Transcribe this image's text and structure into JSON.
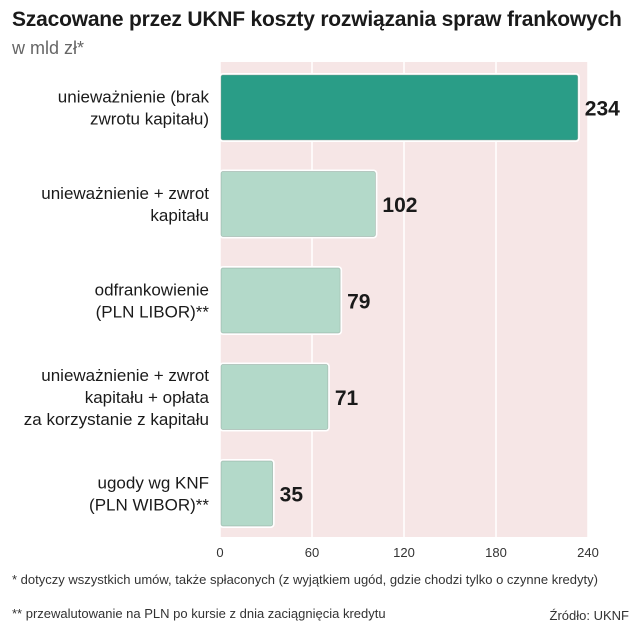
{
  "chart_data": {
    "type": "bar",
    "orientation": "horizontal",
    "title": "Szacowane przez UKNF koszty rozwiązania spraw frankowych",
    "subtitle": "w mld zł*",
    "categories": [
      [
        "unieważnienie (brak",
        "zwrotu kapitału)"
      ],
      [
        "unieważnienie + zwrot",
        "kapitału"
      ],
      [
        "odfrankowienie",
        "(PLN LIBOR)**"
      ],
      [
        "unieważnienie + zwrot",
        "kapitału + opłata",
        "za korzystanie z kapitału"
      ],
      [
        "ugody wg KNF",
        "(PLN WIBOR)**"
      ]
    ],
    "values": [
      234,
      102,
      79,
      71,
      35
    ],
    "value_labels": [
      "234",
      "102",
      "79",
      "71",
      "35"
    ],
    "x_ticks": [
      "0",
      "60",
      "120",
      "180",
      "240"
    ],
    "x_tick_values": [
      0,
      60,
      120,
      180,
      240
    ],
    "xlim": [
      0,
      240
    ],
    "grid": true,
    "colors": {
      "highlight_bar": "#2a9d87",
      "bar": "#b3d9c9",
      "bar_border": "#ffffff",
      "plot_background": "#f6e6e6",
      "grid": "#ffffff"
    }
  },
  "footnotes": {
    "note1": "* dotyczy wszystkich umów, także spłaconych (z wyjątkiem ugód, gdzie chodzi tylko o czynne kredyty)",
    "note2": "**  przewalutowanie na PLN po kursie z dnia zaciągnięcia kredytu"
  },
  "source": "Źródło: UKNF"
}
